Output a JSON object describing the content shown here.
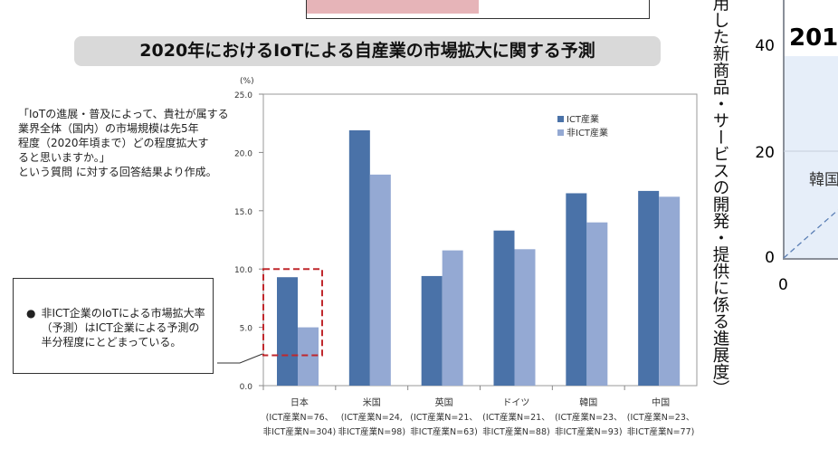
{
  "title": "2020年におけるIoTによる自産業の市場拡大に関する予測",
  "note": [
    "「IoTの進展・普及によって、貴社が属する",
    "業界全体（国内）の市場規模は先5年",
    "程度（2020年頃まで）どの程度拡大す",
    "ると思いますか。」",
    "という質問 に対する回答結果より作成。"
  ],
  "callout": "非ICT企業のIoTによる市場拡大率（予測）はICT企業による予測の半分程度にとどまっている。",
  "chart_data": {
    "type": "bar",
    "ylabel": "(%)",
    "ylim": [
      0,
      25
    ],
    "yticks": [
      "0.0",
      "5.0",
      "10.0",
      "15.0",
      "20.0",
      "25.0"
    ],
    "categories": [
      {
        "name": "日本",
        "n1": "(ICT産業N=76、",
        "n2": "非ICT産業N=304)"
      },
      {
        "name": "米国",
        "n1": "(ICT産業N=24,",
        "n2": "非ICT産業N=98)"
      },
      {
        "name": "英国",
        "n1": "(ICT産業N=21、",
        "n2": "非ICT産業N=63)"
      },
      {
        "name": "ドイツ",
        "n1": "(ICT産業N=21、",
        "n2": "非ICT産業N=88)"
      },
      {
        "name": "韓国",
        "n1": "(ICT産業N=23、",
        "n2": "非ICT産業N=93)"
      },
      {
        "name": "中国",
        "n1": "(ICT産業N=23、",
        "n2": "非ICT産業N=77)"
      }
    ],
    "series": [
      {
        "name": "ICT産業",
        "color": "#4a72a8",
        "values": [
          9.3,
          21.9,
          9.4,
          13.3,
          16.5,
          16.7
        ]
      },
      {
        "name": "非ICT産業",
        "color": "#94a9d3",
        "values": [
          5.0,
          18.1,
          11.6,
          11.7,
          14.0,
          16.2
        ]
      }
    ],
    "legend": "top-right",
    "highlight": {
      "category": "日本",
      "color": "#c0282d"
    }
  },
  "right_panel": {
    "vertical_label": "用した新商品・サービスの開発・提供に係る進展度）",
    "yticks": [
      "0",
      "20",
      "40"
    ],
    "xtick": "0",
    "title_fragment": "201",
    "label": "韓国"
  }
}
